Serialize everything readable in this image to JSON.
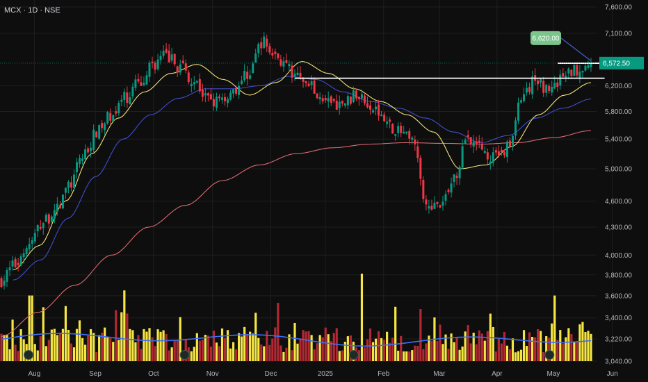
{
  "header": {
    "symbol_line": "MCX · 1D · NSE"
  },
  "price_badges": {
    "last": "6,572.50",
    "target": "6,620.00"
  },
  "chart_data": {
    "type": "candlestick",
    "title": "MCX · 1D · NSE",
    "y_scale": "log",
    "ylim": [
      3040,
      7600
    ],
    "y_ticks": [
      "7,600.00",
      "7,100.00",
      "6,572.50",
      "6,200.00",
      "5,800.00",
      "5,400.00",
      "5,000.00",
      "4,600.00",
      "4,300.00",
      "4,000.00",
      "3,800.00",
      "3,600.00",
      "3,400.00",
      "3,220.00",
      "3,040.00"
    ],
    "x_ticks": [
      "Aug",
      "Sep",
      "Oct",
      "Nov",
      "Dec",
      "2025",
      "Feb",
      "Mar",
      "Apr",
      "May",
      "Jun"
    ],
    "x_tick_positions": [
      0.053,
      0.147,
      0.237,
      0.328,
      0.418,
      0.502,
      0.592,
      0.678,
      0.767,
      0.854,
      0.945
    ],
    "price_anchors": [
      3750,
      3900,
      4100,
      4350,
      4500,
      4800,
      5200,
      5500,
      5750,
      6000,
      6250,
      6550,
      6700,
      6500,
      6300,
      6000,
      5950,
      6150,
      6400,
      6950,
      6700,
      6450,
      6350,
      6100,
      5900,
      5950,
      6050,
      5900,
      5650,
      5500,
      5350,
      4600,
      4500,
      4900,
      5450,
      5250,
      5150,
      5300,
      6000,
      6300,
      6100,
      6350,
      6480,
      6572
    ],
    "ma_fast_anchors": [
      3850,
      4100,
      4600,
      5200,
      5700,
      6100,
      6400,
      6550,
      6300,
      6050,
      6250,
      6600,
      6400,
      6150,
      5950,
      5750,
      5500,
      5000,
      5050,
      5300,
      5750,
      6050,
      6250
    ],
    "ma_mid_anchors": [
      3750,
      3950,
      4400,
      4900,
      5400,
      5750,
      6000,
      6150,
      6150,
      6200,
      6350,
      6300,
      6100,
      5950,
      5850,
      5700,
      5500,
      5350,
      5450,
      5700,
      5850,
      5990
    ],
    "ma_slow_anchors": [
      3240,
      3450,
      3700,
      4000,
      4300,
      4550,
      4850,
      5050,
      5200,
      5280,
      5330,
      5350,
      5340,
      5330,
      5350,
      5420,
      5520
    ],
    "volume_ma_level": 0.45,
    "resistance_lines": [
      {
        "price": 6320,
        "from": 0.455,
        "to": 0.933
      },
      {
        "price": 6570,
        "from": 0.861,
        "to": 0.933
      }
    ],
    "target_price": 6620,
    "earnings_markers": [
      0.044,
      0.285,
      0.546,
      0.848
    ],
    "colors": {
      "up": "#089981",
      "down": "#f23645",
      "vol_up": "#f5e642",
      "vol_down": "#b22833",
      "ma_fast": "#f2e27a",
      "ma_mid": "#3f4fc9",
      "ma_slow": "#d96a6f",
      "vol_ma": "#3f6ef5",
      "last_badge": "#089981",
      "target_badge": "#7bc48c",
      "grid": "#1f1f1f",
      "axis_text": "#b2b5be"
    }
  }
}
